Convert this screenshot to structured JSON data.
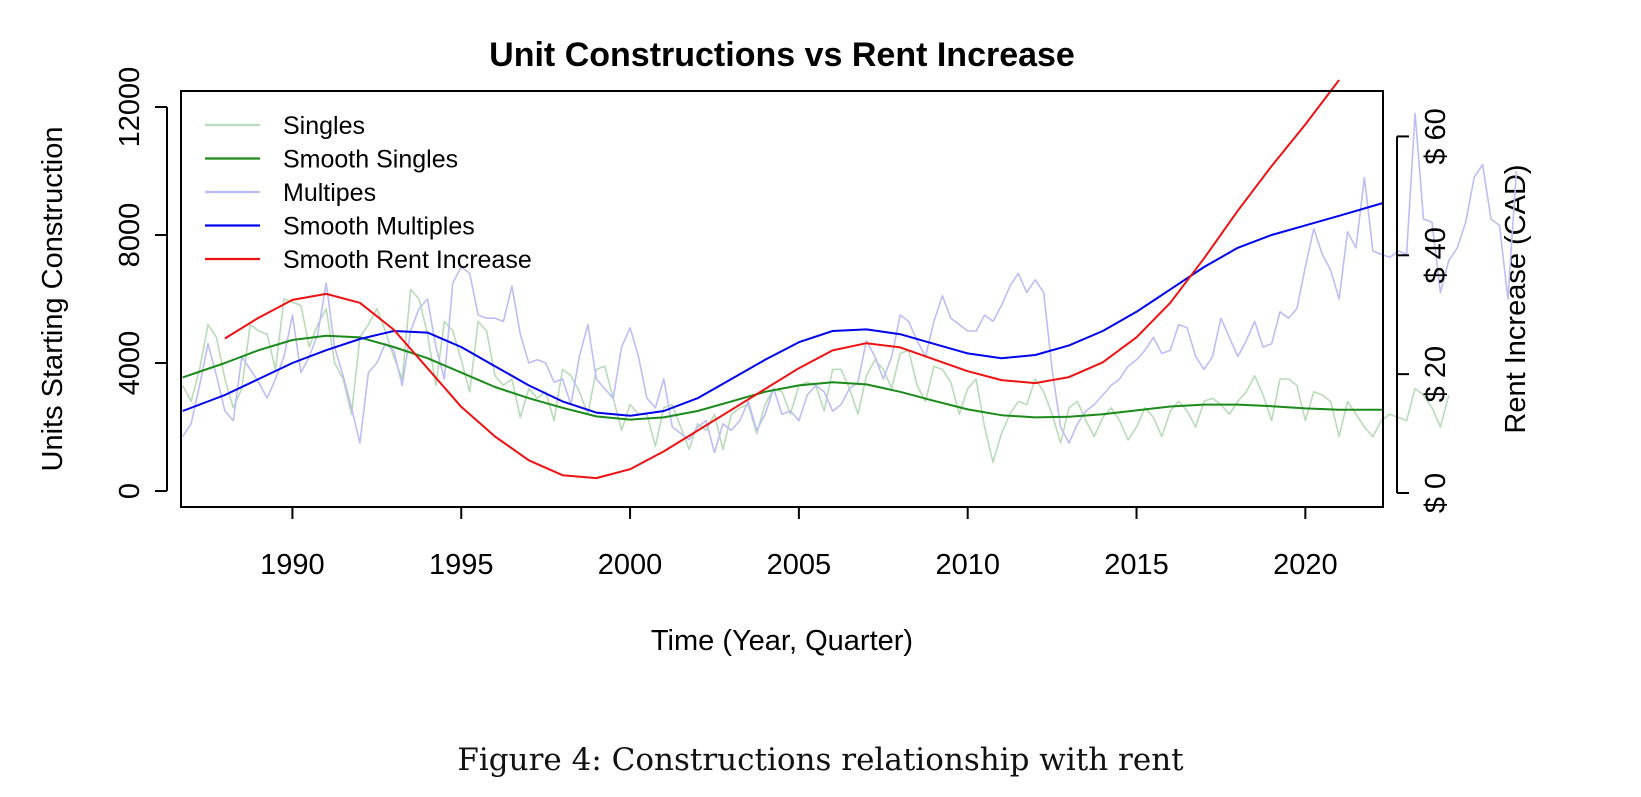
{
  "caption": "Figure 4: Constructions relationship with rent",
  "chart_data": {
    "type": "line",
    "title": "Unit Constructions vs Rent Increase",
    "xlabel": "Time (Year, Quarter)",
    "ylabel": "Units Starting Construction",
    "y2label": "Rent Increase (CAD)",
    "xlim": [
      1986.7,
      2022.3
    ],
    "ylim": [
      -500,
      12500
    ],
    "y2lim": [
      0,
      70
    ],
    "x_ticks": [
      1990,
      1995,
      2000,
      2005,
      2010,
      2015,
      2020
    ],
    "y_ticks": [
      0,
      4000,
      8000,
      12000
    ],
    "y2_ticks": [
      0,
      20,
      40,
      60
    ],
    "y2_tick_labels": [
      "$ 0",
      "$ 20",
      "$ 40",
      "$ 60"
    ],
    "legend_position": "top-left",
    "grid": false,
    "colors": {
      "singles": "#b8dbb8",
      "smooth_singles": "#1a8a1a",
      "multiples": "#bdbdf5",
      "smooth_multiples": "#0000ee",
      "rent": "#ee1111"
    },
    "series": [
      {
        "name": "Singles",
        "axis": "left",
        "style": "raw",
        "x_start": 1986.75,
        "x_step": 0.25,
        "values": [
          3300,
          2800,
          3800,
          5200,
          4800,
          3500,
          2600,
          3200,
          5200,
          5000,
          4900,
          3800,
          6000,
          5900,
          5800,
          4500,
          5200,
          5700,
          4000,
          3500,
          2400,
          4800,
          5200,
          5700,
          5000,
          4200,
          3500,
          6300,
          6000,
          4900,
          3300,
          5300,
          5000,
          4100,
          3100,
          5300,
          5000,
          3600,
          3300,
          3500,
          2300,
          3200,
          2900,
          3100,
          2200,
          3800,
          3600,
          3100,
          2400,
          3800,
          3900,
          2900,
          1900,
          2700,
          2400,
          2400,
          1400,
          2600,
          2700,
          2000,
          1300,
          2100,
          1900,
          2400,
          1300,
          2400,
          2600,
          2700,
          1800,
          2700,
          3200,
          3100,
          2400,
          3300,
          3400,
          3300,
          2500,
          3800,
          3800,
          3200,
          2400,
          3600,
          4100,
          3800,
          3200,
          4300,
          4400,
          3300,
          2800,
          3900,
          3800,
          3400,
          2400,
          3200,
          3500,
          2000,
          900,
          1800,
          2400,
          2800,
          2700,
          3500,
          3100,
          2400,
          1500,
          2600,
          2800,
          2200,
          1700,
          2300,
          2600,
          2200,
          1600,
          2000,
          2600,
          2300,
          1700,
          2500,
          2800,
          2500,
          2000,
          2800,
          2900,
          2700,
          2400,
          2800,
          3100,
          3600,
          3000,
          2200,
          3500,
          3500,
          3300,
          2200,
          3100,
          3000,
          2800,
          1700,
          2800,
          2400,
          2000,
          1700,
          2200,
          2400,
          2300,
          2200,
          3200,
          3000,
          2600,
          2000,
          3000
        ]
      },
      {
        "name": "Smooth Singles",
        "axis": "left",
        "style": "smooth",
        "x": [
          1986.75,
          1988,
          1989,
          1990,
          1991,
          1992,
          1993,
          1994,
          1995,
          1996,
          1997,
          1998,
          1999,
          2000,
          2001,
          2002,
          2003,
          2004,
          2005,
          2006,
          2007,
          2008,
          2009,
          2010,
          2011,
          2012,
          2013,
          2014,
          2015,
          2016,
          2017,
          2018,
          2019,
          2020,
          2021,
          2022.3
        ],
        "values": [
          3550,
          4000,
          4400,
          4720,
          4850,
          4800,
          4500,
          4150,
          3700,
          3250,
          2900,
          2600,
          2330,
          2230,
          2300,
          2500,
          2800,
          3100,
          3300,
          3400,
          3330,
          3100,
          2820,
          2550,
          2370,
          2300,
          2320,
          2400,
          2520,
          2640,
          2700,
          2700,
          2650,
          2580,
          2540,
          2540
        ]
      },
      {
        "name": "Multipes",
        "axis": "left",
        "style": "raw",
        "x_start": 1986.75,
        "x_step": 0.25,
        "values": [
          1700,
          2100,
          3300,
          4600,
          3600,
          2500,
          2200,
          4200,
          3800,
          3400,
          2900,
          3500,
          4200,
          5500,
          3700,
          4200,
          4900,
          6500,
          4500,
          3600,
          2600,
          1500,
          3700,
          4000,
          4600,
          4400,
          3300,
          5000,
          5700,
          6000,
          4500,
          3500,
          6500,
          7000,
          6800,
          5500,
          5400,
          5400,
          5300,
          6400,
          4900,
          4000,
          4100,
          4000,
          3400,
          3500,
          2700,
          4200,
          5200,
          3500,
          3200,
          2900,
          4500,
          5100,
          4200,
          2900,
          2600,
          3500,
          2000,
          1800,
          1600,
          2000,
          2200,
          1200,
          2100,
          1900,
          2200,
          2800,
          1900,
          2400,
          3200,
          2400,
          2500,
          2200,
          3000,
          3300,
          3100,
          2500,
          2700,
          3200,
          3400,
          4700,
          4200,
          3500,
          4200,
          5500,
          5300,
          4700,
          4200,
          5300,
          6100,
          5400,
          5200,
          5000,
          5000,
          5500,
          5300,
          5800,
          6400,
          6800,
          6200,
          6600,
          6200,
          3800,
          2000,
          1500,
          2100,
          2500,
          2700,
          3000,
          3300,
          3500,
          3900,
          4100,
          4400,
          4800,
          4300,
          4400,
          5200,
          5100,
          4200,
          3800,
          4200,
          5400,
          4800,
          4200,
          4700,
          5300,
          4500,
          4600,
          5600,
          5400,
          5700,
          7000,
          8200,
          7400,
          6900,
          6000,
          8100,
          7600,
          9800,
          7500,
          7400,
          7300,
          7500,
          7400,
          11800,
          8500,
          8400,
          6200,
          7200,
          7600,
          8400,
          9800,
          10200,
          8500,
          8300,
          6000,
          10000
        ]
      },
      {
        "name": "Smooth Multiples",
        "axis": "left",
        "style": "smooth",
        "x": [
          1986.75,
          1988,
          1989,
          1990,
          1991,
          1992,
          1993,
          1994,
          1995,
          1996,
          1997,
          1998,
          1999,
          2000,
          2001,
          2002,
          2003,
          2004,
          2005,
          2006,
          2007,
          2008,
          2009,
          2010,
          2011,
          2012,
          2013,
          2014,
          2015,
          2016,
          2017,
          2018,
          2019,
          2020,
          2021,
          2022.3
        ],
        "values": [
          2500,
          3000,
          3500,
          4000,
          4400,
          4750,
          5000,
          4950,
          4500,
          3900,
          3300,
          2800,
          2450,
          2350,
          2500,
          2900,
          3500,
          4100,
          4650,
          5000,
          5050,
          4900,
          4600,
          4300,
          4150,
          4250,
          4550,
          5000,
          5600,
          6300,
          7000,
          7600,
          8000,
          8300,
          8600,
          9000
        ]
      },
      {
        "name": "Smooth Rent Increase",
        "axis": "right",
        "style": "smooth",
        "x": [
          1988,
          1989,
          1990,
          1991,
          1992,
          1993,
          1994,
          1995,
          1996,
          1997,
          1998,
          1999,
          2000,
          2001,
          2002,
          2003,
          2004,
          2005,
          2006,
          2007,
          2008,
          2009,
          2010,
          2011,
          2012,
          2013,
          2014,
          2015,
          2016,
          2017,
          2018,
          2019,
          2020,
          2021
        ],
        "values": [
          26,
          29.5,
          32.5,
          33.5,
          32,
          27.5,
          21,
          14.5,
          9.5,
          5.5,
          3,
          2.5,
          4,
          7,
          10.5,
          14,
          17.5,
          21,
          24,
          25.2,
          24.5,
          22.5,
          20.5,
          19,
          18.5,
          19.5,
          22,
          26.2,
          32,
          39.5,
          47.5,
          55,
          62,
          69.5
        ]
      }
    ]
  }
}
